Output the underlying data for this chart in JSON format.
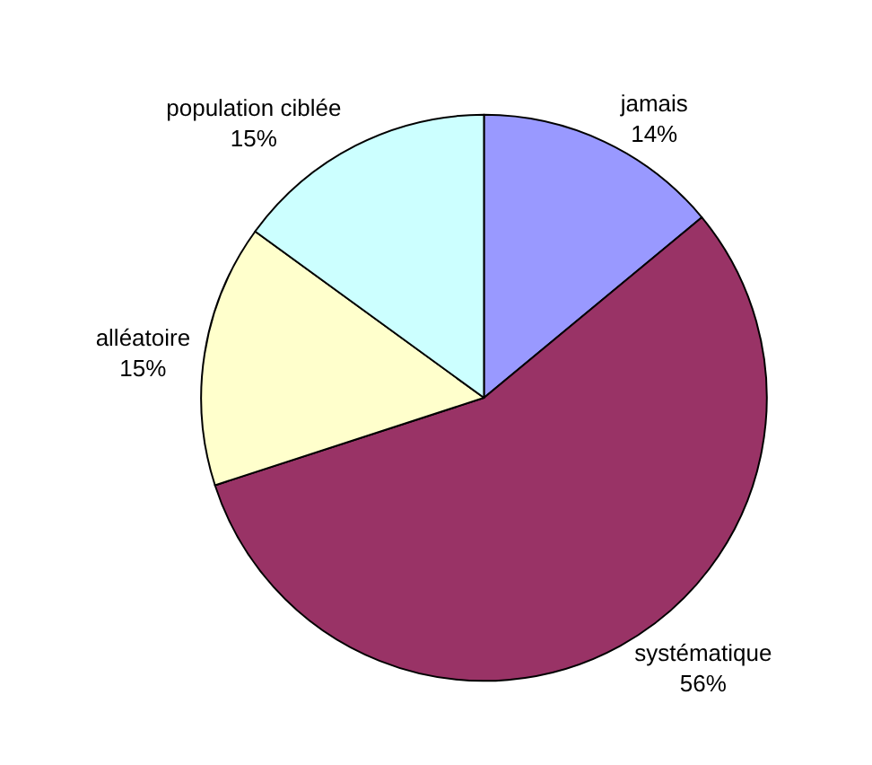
{
  "chart_data": {
    "type": "pie",
    "categories": [
      "jamais",
      "systématique",
      "alléatoire",
      "population ciblée"
    ],
    "values": [
      14,
      56,
      15,
      15
    ],
    "value_labels": [
      "14%",
      "56%",
      "15%",
      "15%"
    ],
    "colors": [
      "#9999ff",
      "#993366",
      "#ffffcc",
      "#ccffff"
    ],
    "legend": false
  }
}
